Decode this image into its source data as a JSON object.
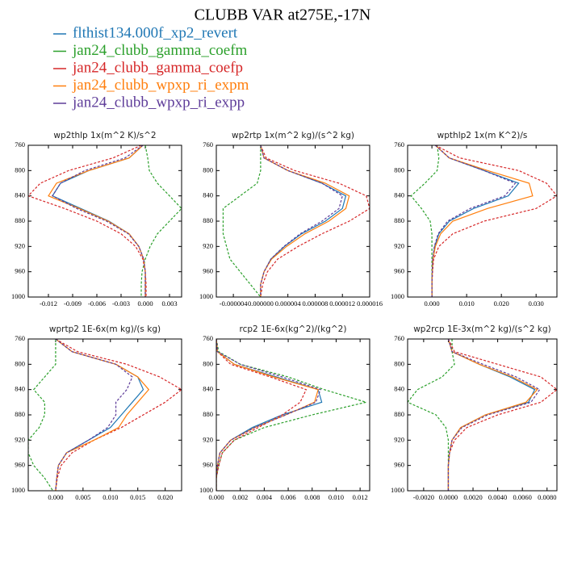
{
  "title": "CLUBB VAR at275E,-17N",
  "chart_data": [
    {
      "type": "line",
      "title": "wp2thlp  1x(m^2 K)/s^2",
      "levels": [
        760,
        780,
        800,
        820,
        840,
        860,
        880,
        900,
        920,
        940,
        960,
        980,
        1000
      ],
      "ylim": [
        1000,
        760
      ],
      "yticks": [
        760,
        800,
        840,
        880,
        920,
        960,
        1000
      ],
      "xlim": [
        -0.0145,
        0.0045
      ],
      "xticks": [
        -0.012,
        -0.009,
        -0.006,
        -0.003,
        {
          "value": 0,
          "label": "0.000"
        },
        0.003
      ],
      "series": [
        {
          "name": "flthist134.000f_xp2_revert",
          "color": "#1f77b4",
          "dashed": false,
          "values": [
            -0.0003,
            -0.002,
            -0.007,
            -0.0105,
            -0.0115,
            -0.008,
            -0.0045,
            -0.002,
            -0.0008,
            -0.0002,
            0,
            0,
            0
          ]
        },
        {
          "name": "jan24_clubb_gamma_coefm",
          "color": "#2ca02c",
          "dashed": true,
          "values": [
            0,
            0.0003,
            0.0005,
            0.0015,
            0.003,
            0.0045,
            0.003,
            0.0015,
            0.0006,
            0,
            -0.0004,
            -0.0005,
            -0.0005
          ]
        },
        {
          "name": "jan24_clubb_gamma_coefp",
          "color": "#d62728",
          "dashed": true,
          "values": [
            -0.0005,
            -0.004,
            -0.0095,
            -0.013,
            -0.0145,
            -0.01,
            -0.006,
            -0.003,
            -0.0012,
            -0.0003,
            0,
            0.0001,
            0.0001
          ]
        },
        {
          "name": "jan24_clubb_wpxp_ri_expm",
          "color": "#ff7f0e",
          "dashed": false,
          "values": [
            -0.0003,
            -0.002,
            -0.007,
            -0.011,
            -0.012,
            -0.0082,
            -0.0046,
            -0.002,
            -0.0008,
            -0.0002,
            0,
            0,
            0
          ]
        },
        {
          "name": "jan24_clubb_wpxp_ri_expp",
          "color": "#5e3c99",
          "dashed": true,
          "values": [
            -0.0003,
            -0.0025,
            -0.0075,
            -0.0105,
            -0.0115,
            -0.0085,
            -0.0048,
            -0.0021,
            -0.0008,
            -0.0002,
            0,
            0,
            0
          ]
        }
      ]
    },
    {
      "type": "line",
      "title": "wp2rtp  1x(m^2 kg)/(s^2 kg)",
      "levels": [
        760,
        780,
        800,
        820,
        840,
        860,
        880,
        900,
        920,
        940,
        960,
        980,
        1000
      ],
      "ylim": [
        1000,
        760
      ],
      "yticks": [
        760,
        800,
        840,
        880,
        920,
        960,
        1000
      ],
      "xlim": [
        -6.5e-06,
        1.6e-05
      ],
      "xticks": [
        {
          "value": -4e-06,
          "label": "-0.000004"
        },
        {
          "value": 0,
          "label": "0.000000"
        },
        {
          "value": 4e-06,
          "label": "0.000004"
        },
        {
          "value": 8e-06,
          "label": "0.000008"
        },
        {
          "value": 1.2e-05,
          "label": "0.000012"
        },
        {
          "value": 1.6e-05,
          "label": "0.000016"
        }
      ],
      "series": [
        {
          "name": "flthist134.000f_xp2_revert",
          "color": "#1f77b4",
          "dashed": false,
          "values": [
            0,
            5e-07,
            4e-06,
            9e-06,
            1.25e-05,
            1.2e-05,
            9.5e-06,
            6e-06,
            3.5e-06,
            1.5e-06,
            5e-07,
            0,
            0
          ]
        },
        {
          "name": "jan24_clubb_gamma_coefm",
          "color": "#2ca02c",
          "dashed": true,
          "values": [
            0,
            0,
            0,
            -5e-07,
            -3e-06,
            -5.5e-06,
            -5.5e-06,
            -5.5e-06,
            -5e-06,
            -4.5e-06,
            -3e-06,
            -1.5e-06,
            0
          ]
        },
        {
          "name": "jan24_clubb_gamma_coefp",
          "color": "#d62728",
          "dashed": true,
          "values": [
            0,
            8e-07,
            5e-06,
            1.15e-05,
            1.55e-05,
            1.6e-05,
            1.3e-05,
            9e-06,
            5.5e-06,
            2.5e-06,
            1e-06,
            3e-07,
            0
          ]
        },
        {
          "name": "jan24_clubb_wpxp_ri_expm",
          "color": "#ff7f0e",
          "dashed": false,
          "values": [
            0,
            5e-07,
            4e-06,
            9.5e-06,
            1.3e-05,
            1.25e-05,
            1e-05,
            6.5e-06,
            3.8e-06,
            1.6e-06,
            5e-07,
            0,
            0
          ]
        },
        {
          "name": "jan24_clubb_wpxp_ri_expp",
          "color": "#5e3c99",
          "dashed": true,
          "values": [
            0,
            5e-07,
            4e-06,
            9e-06,
            1.2e-05,
            1.15e-05,
            9e-06,
            5.8e-06,
            3.4e-06,
            1.5e-06,
            5e-07,
            0,
            0
          ]
        }
      ]
    },
    {
      "type": "line",
      "title": "wpthlp2  1x(m K^2)/s",
      "levels": [
        760,
        780,
        800,
        820,
        840,
        860,
        880,
        900,
        920,
        940,
        960,
        980,
        1000
      ],
      "ylim": [
        1000,
        760
      ],
      "yticks": [
        760,
        800,
        840,
        880,
        920,
        960,
        1000
      ],
      "xlim": [
        -0.007,
        0.036
      ],
      "xticks": [
        {
          "value": 0,
          "label": "0.000"
        },
        {
          "value": 0.01,
          "label": "0.010"
        },
        {
          "value": 0.02,
          "label": "0.020"
        },
        {
          "value": 0.03,
          "label": "0.030"
        }
      ],
      "series": [
        {
          "name": "flthist134.000f_xp2_revert",
          "color": "#1f77b4",
          "dashed": false,
          "values": [
            0.001,
            0.005,
            0.015,
            0.025,
            0.022,
            0.012,
            0.005,
            0.002,
            0.0008,
            0.0003,
            0.0001,
            0,
            0
          ]
        },
        {
          "name": "jan24_clubb_gamma_coefm",
          "color": "#2ca02c",
          "dashed": true,
          "values": [
            0.0015,
            0.002,
            0.0015,
            -0.002,
            -0.006,
            -0.003,
            -0.0005,
            0,
            0,
            0,
            0,
            0,
            0
          ]
        },
        {
          "name": "jan24_clubb_gamma_coefp",
          "color": "#d62728",
          "dashed": true,
          "values": [
            0.001,
            0.008,
            0.025,
            0.033,
            0.036,
            0.03,
            0.015,
            0.006,
            0.002,
            0.0005,
            0.0002,
            0,
            0
          ]
        },
        {
          "name": "jan24_clubb_wpxp_ri_expm",
          "color": "#ff7f0e",
          "dashed": false,
          "values": [
            0.001,
            0.005,
            0.016,
            0.028,
            0.029,
            0.016,
            0.006,
            0.0025,
            0.001,
            0.0003,
            0.0001,
            0,
            0
          ]
        },
        {
          "name": "jan24_clubb_wpxp_ri_expp",
          "color": "#5e3c99",
          "dashed": true,
          "values": [
            0.001,
            0.005,
            0.015,
            0.024,
            0.021,
            0.011,
            0.0045,
            0.0018,
            0.0007,
            0.0002,
            0.0001,
            0,
            0
          ]
        }
      ]
    },
    {
      "type": "line",
      "title": "wprtp2  1E-6x(m kg)/(s kg)",
      "levels": [
        760,
        780,
        800,
        820,
        840,
        860,
        880,
        900,
        920,
        940,
        960,
        980,
        1000
      ],
      "ylim": [
        1000,
        760
      ],
      "yticks": [
        760,
        800,
        840,
        880,
        920,
        960,
        1000
      ],
      "xlim": [
        -0.005,
        0.023
      ],
      "xticks": [
        {
          "value": 0,
          "label": "0.000"
        },
        {
          "value": 0.005,
          "label": "0.005"
        },
        {
          "value": 0.01,
          "label": "0.010"
        },
        {
          "value": 0.015,
          "label": "0.015"
        },
        {
          "value": 0.02,
          "label": "0.020"
        }
      ],
      "series": [
        {
          "name": "flthist134.000f_xp2_revert",
          "color": "#1f77b4",
          "dashed": false,
          "values": [
            0,
            0.003,
            0.011,
            0.015,
            0.016,
            0.014,
            0.012,
            0.01,
            0.006,
            0.002,
            0.0005,
            0.0002,
            0
          ]
        },
        {
          "name": "jan24_clubb_gamma_coefm",
          "color": "#2ca02c",
          "dashed": true,
          "values": [
            0,
            0,
            0,
            -0.002,
            -0.004,
            -0.002,
            -0.002,
            -0.003,
            -0.005,
            -0.005,
            -0.004,
            -0.002,
            -0.0005
          ]
        },
        {
          "name": "jan24_clubb_gamma_coefp",
          "color": "#d62728",
          "dashed": true,
          "values": [
            0,
            0.004,
            0.013,
            0.019,
            0.023,
            0.02,
            0.016,
            0.012,
            0.007,
            0.003,
            0.001,
            0.0003,
            0
          ]
        },
        {
          "name": "jan24_clubb_wpxp_ri_expm",
          "color": "#ff7f0e",
          "dashed": false,
          "values": [
            0,
            0.003,
            0.011,
            0.015,
            0.017,
            0.015,
            0.013,
            0.0115,
            0.007,
            0.002,
            0.0005,
            0.0002,
            0
          ]
        },
        {
          "name": "jan24_clubb_wpxp_ri_expp",
          "color": "#5e3c99",
          "dashed": true,
          "values": [
            0,
            0.003,
            0.011,
            0.014,
            0.013,
            0.011,
            0.011,
            0.0095,
            0.006,
            0.002,
            0.0005,
            0.0002,
            0
          ]
        }
      ]
    },
    {
      "type": "line",
      "title": "rcp2  1E-6x(kg^2)/(kg^2)",
      "levels": [
        760,
        780,
        800,
        820,
        840,
        860,
        880,
        900,
        920,
        940,
        960,
        980,
        1000
      ],
      "ylim": [
        1000,
        760
      ],
      "yticks": [
        760,
        800,
        840,
        880,
        920,
        960,
        1000
      ],
      "xlim": [
        0,
        0.0128
      ],
      "xticks": [
        {
          "value": 0,
          "label": "0.000"
        },
        {
          "value": 0.002,
          "label": "0.002"
        },
        {
          "value": 0.004,
          "label": "0.004"
        },
        {
          "value": 0.006,
          "label": "0.006"
        },
        {
          "value": 0.008,
          "label": "0.008"
        },
        {
          "value": 0.01,
          "label": "0.010"
        },
        {
          "value": 0.012,
          "label": "0.012"
        }
      ],
      "series": [
        {
          "name": "flthist134.000f_xp2_revert",
          "color": "#1f77b4",
          "dashed": false,
          "values": [
            0,
            0.0001,
            0.0015,
            0.005,
            0.0085,
            0.0088,
            0.0055,
            0.003,
            0.0012,
            0.0003,
            0.0001,
            0,
            0
          ]
        },
        {
          "name": "jan24_clubb_gamma_coefm",
          "color": "#2ca02c",
          "dashed": true,
          "values": [
            0,
            0.0002,
            0.002,
            0.006,
            0.009,
            0.0125,
            0.008,
            0.004,
            0.0015,
            0.0005,
            0.0002,
            0,
            0
          ]
        },
        {
          "name": "jan24_clubb_gamma_coefp",
          "color": "#d62728",
          "dashed": true,
          "values": [
            0,
            0.0001,
            0.0012,
            0.0045,
            0.0075,
            0.007,
            0.0055,
            0.0035,
            0.0015,
            0.0005,
            0.0002,
            0,
            0
          ]
        },
        {
          "name": "jan24_clubb_wpxp_ri_expm",
          "color": "#ff7f0e",
          "dashed": false,
          "values": [
            0,
            0.0001,
            0.0015,
            0.0048,
            0.0085,
            0.0082,
            0.0058,
            0.0032,
            0.0012,
            0.0003,
            0.0001,
            0,
            0
          ]
        },
        {
          "name": "jan24_clubb_wpxp_ri_expp",
          "color": "#5e3c99",
          "dashed": true,
          "values": [
            0,
            0.0001,
            0.002,
            0.0055,
            0.0087,
            0.0083,
            0.0058,
            0.0032,
            0.0012,
            0.0003,
            0.0001,
            0,
            0
          ]
        }
      ]
    },
    {
      "type": "line",
      "title": "wp2rcp  1E-3x(m^2 kg)/(s^2 kg)",
      "levels": [
        760,
        780,
        800,
        820,
        840,
        860,
        880,
        900,
        920,
        940,
        960,
        980,
        1000
      ],
      "ylim": [
        1000,
        760
      ],
      "yticks": [
        760,
        800,
        840,
        880,
        920,
        960,
        1000
      ],
      "xlim": [
        -0.0033,
        0.0088
      ],
      "xticks": [
        {
          "value": -0.002,
          "label": "-0.0020"
        },
        {
          "value": 0,
          "label": "0.0000"
        },
        {
          "value": 0.002,
          "label": "0.0020"
        },
        {
          "value": 0.004,
          "label": "0.0040"
        },
        {
          "value": 0.006,
          "label": "0.0060"
        },
        {
          "value": 0.008,
          "label": "0.0080"
        }
      ],
      "series": [
        {
          "name": "flthist134.000f_xp2_revert",
          "color": "#1f77b4",
          "dashed": false,
          "values": [
            0,
            0.0003,
            0.0025,
            0.005,
            0.007,
            0.0065,
            0.003,
            0.001,
            0.0003,
            0.0001,
            0,
            0,
            0
          ]
        },
        {
          "name": "jan24_clubb_gamma_coefm",
          "color": "#2ca02c",
          "dashed": true,
          "values": [
            0.0003,
            0.0003,
            0.0005,
            -0.0005,
            -0.0025,
            -0.0033,
            -0.001,
            -0.0002,
            0,
            0,
            0,
            0,
            0
          ]
        },
        {
          "name": "jan24_clubb_gamma_coefp",
          "color": "#d62728",
          "dashed": true,
          "values": [
            0,
            0.0005,
            0.004,
            0.0075,
            0.0088,
            0.0075,
            0.004,
            0.0015,
            0.0005,
            0.0001,
            0,
            0,
            0
          ]
        },
        {
          "name": "jan24_clubb_wpxp_ri_expm",
          "color": "#ff7f0e",
          "dashed": false,
          "values": [
            0,
            0.0003,
            0.0025,
            0.0052,
            0.0072,
            0.0063,
            0.003,
            0.001,
            0.0003,
            0.0001,
            0,
            0,
            0
          ]
        },
        {
          "name": "jan24_clubb_wpxp_ri_expp",
          "color": "#5e3c99",
          "dashed": true,
          "values": [
            0,
            0.0003,
            0.0028,
            0.0055,
            0.0074,
            0.0067,
            0.0032,
            0.0011,
            0.0003,
            0.0001,
            0,
            0,
            0
          ]
        }
      ]
    }
  ]
}
